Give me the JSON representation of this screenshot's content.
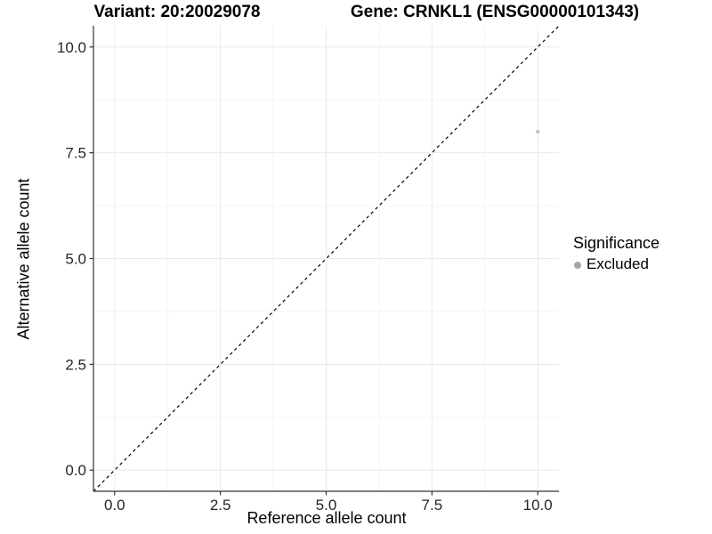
{
  "chart_data": {
    "type": "scatter",
    "titles": {
      "left": "Variant: 20:20029078",
      "right": "Gene: CRNKL1 (ENSG00000101343)"
    },
    "xlabel": "Reference allele count",
    "ylabel": "Alternative allele count",
    "xlim": [
      -0.5,
      10.5
    ],
    "ylim": [
      -0.5,
      10.5
    ],
    "x_ticks": [
      {
        "value": 0,
        "label": "0.0"
      },
      {
        "value": 2.5,
        "label": "2.5"
      },
      {
        "value": 5,
        "label": "5.0"
      },
      {
        "value": 7.5,
        "label": "7.5"
      },
      {
        "value": 10,
        "label": "10.0"
      }
    ],
    "y_ticks": [
      {
        "value": 0,
        "label": "0.0"
      },
      {
        "value": 2.5,
        "label": "2.5"
      },
      {
        "value": 5,
        "label": "5.0"
      },
      {
        "value": 7.5,
        "label": "7.5"
      },
      {
        "value": 10,
        "label": "10.0"
      }
    ],
    "x_minor": [
      1.25,
      3.75,
      6.25,
      8.75
    ],
    "y_minor": [
      1.25,
      3.75,
      6.25,
      8.75
    ],
    "grid": "major+minor",
    "identity_line": {
      "slope": 1,
      "intercept": 0,
      "style": "dashed",
      "color": "#000000"
    },
    "points": [
      {
        "x": 10,
        "y": 8,
        "series": "Excluded"
      }
    ],
    "point_radius": 2.3,
    "legend": {
      "title": "Significance",
      "position": "right",
      "entries": [
        {
          "label": "Excluded",
          "color": "#a6a6a6"
        }
      ]
    },
    "colors": {
      "background": "#ffffff",
      "grid_major": "#eaeaea",
      "grid_minor": "#f5f5f5",
      "axis_line": "#333333",
      "tick_text": "#262626",
      "point": "#c4c4c4"
    }
  }
}
